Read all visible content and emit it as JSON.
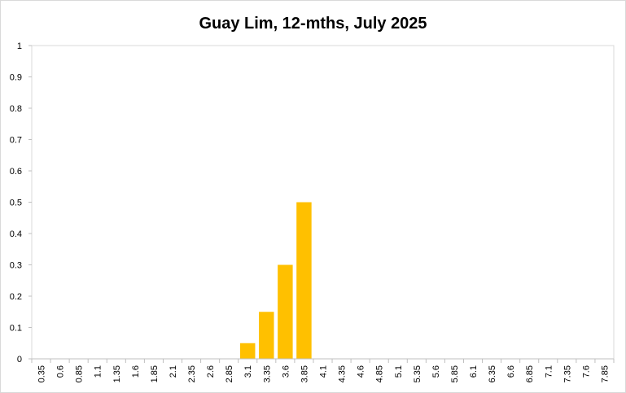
{
  "chart_data": {
    "type": "bar",
    "title": "Guay Lim, 12-mths, July 2025",
    "xlabel": "",
    "ylabel": "",
    "categories": [
      "0.35",
      "0.6",
      "0.85",
      "1.1",
      "1.35",
      "1.6",
      "1.85",
      "2.1",
      "2.35",
      "2.6",
      "2.85",
      "3.1",
      "3.35",
      "3.6",
      "3.85",
      "4.1",
      "4.35",
      "4.6",
      "4.85",
      "5.1",
      "5.35",
      "5.6",
      "5.85",
      "6.1",
      "6.35",
      "6.6",
      "6.85",
      "7.1",
      "7.35",
      "7.6",
      "7.85"
    ],
    "values": [
      0,
      0,
      0,
      0,
      0,
      0,
      0,
      0,
      0,
      0,
      0,
      0.05,
      0.15,
      0.3,
      0.5,
      0,
      0,
      0,
      0,
      0,
      0,
      0,
      0,
      0,
      0,
      0,
      0,
      0,
      0,
      0,
      0
    ],
    "yticks": [
      "0",
      "0.1",
      "0.2",
      "0.3",
      "0.4",
      "0.5",
      "0.6",
      "0.7",
      "0.8",
      "0.9",
      "1"
    ],
    "ylim": [
      0,
      1
    ],
    "grid": false,
    "legend": "none",
    "bar_color": "#FFC000"
  }
}
